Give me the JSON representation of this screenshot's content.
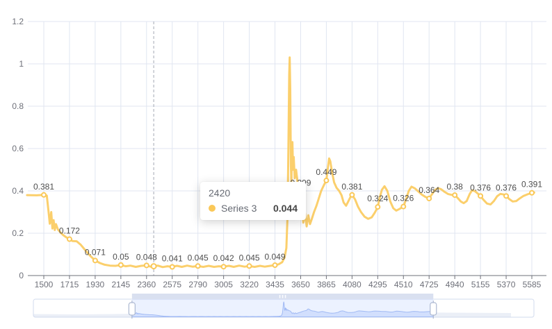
{
  "appearance": {
    "background": "#ffffff",
    "grid_line_color": "#E0E6F1",
    "axis_color": "#6E7079",
    "axis_label_color": "#6E7079",
    "data_label_color": "#4D4D4D",
    "axis_pointer_color": "#A2A7B3",
    "slider_border_color": "#D2DBEE",
    "slider_handle_border": "#ACB8D1",
    "slider_fill_color": "rgba(135,175,255,0.16)",
    "slider_selected_shadow_line": "#A6BDF2",
    "slider_selected_shadow_area": "rgba(143,176,247,0.28)",
    "slider_unselected_shadow_area": "rgba(210,219,238,0.45)"
  },
  "chart_data": {
    "type": "line",
    "title": "",
    "legend": "none",
    "grid": true,
    "x_axis": {
      "ticks": [
        1500,
        1715,
        1930,
        2145,
        2360,
        2575,
        2790,
        3005,
        3220,
        3435,
        3650,
        3865,
        4080,
        4295,
        4510,
        4725,
        4940,
        5155,
        5370,
        5585
      ]
    },
    "y_axis": {
      "ticks": [
        0,
        0.2,
        0.4,
        0.6,
        0.8,
        1,
        1.2
      ],
      "range": [
        0,
        1.2
      ]
    },
    "series": [
      {
        "name": "Series 3",
        "color": "#FAC858",
        "points": {
          "x": [
            1500,
            1715,
            1930,
            2145,
            2360,
            2575,
            2790,
            3005,
            3220,
            3435,
            3650,
            3865,
            4080,
            4295,
            4510,
            4725,
            4940,
            5155,
            5370,
            5585
          ],
          "y": [
            0.381,
            0.172,
            0.071,
            0.05,
            0.048,
            0.041,
            0.045,
            0.042,
            0.045,
            0.049,
            0.399,
            0.449,
            0.381,
            0.324,
            0.326,
            0.364,
            0.38,
            0.376,
            0.376,
            0.391
          ],
          "labels": [
            "0.381",
            "0.172",
            "0.071",
            "0.05",
            "0.048",
            "0.041",
            "0.045",
            "0.042",
            "0.045",
            "0.049",
            "0.399",
            "0.449",
            "0.381",
            "0.324",
            "0.326",
            "0.364",
            "0.38",
            "0.376",
            "0.376",
            "0.391"
          ]
        }
      }
    ],
    "hover_point": {
      "x": 2420,
      "value": 0.044
    },
    "detail_line": [
      [
        1360,
        0.38
      ],
      [
        1440,
        0.379
      ],
      [
        1500,
        0.381
      ],
      [
        1525,
        0.378
      ],
      [
        1540,
        0.3
      ],
      [
        1550,
        0.245
      ],
      [
        1562,
        0.3
      ],
      [
        1572,
        0.222
      ],
      [
        1582,
        0.262
      ],
      [
        1592,
        0.215
      ],
      [
        1602,
        0.243
      ],
      [
        1618,
        0.218
      ],
      [
        1640,
        0.203
      ],
      [
        1665,
        0.19
      ],
      [
        1690,
        0.18
      ],
      [
        1715,
        0.172
      ],
      [
        1740,
        0.163
      ],
      [
        1775,
        0.162
      ],
      [
        1810,
        0.145
      ],
      [
        1850,
        0.118
      ],
      [
        1890,
        0.092
      ],
      [
        1930,
        0.071
      ],
      [
        1970,
        0.059
      ],
      [
        2010,
        0.051
      ],
      [
        2055,
        0.047
      ],
      [
        2100,
        0.046
      ],
      [
        2145,
        0.05
      ],
      [
        2185,
        0.044
      ],
      [
        2225,
        0.047
      ],
      [
        2270,
        0.041
      ],
      [
        2315,
        0.046
      ],
      [
        2360,
        0.048
      ],
      [
        2395,
        0.042
      ],
      [
        2420,
        0.044
      ],
      [
        2455,
        0.047
      ],
      [
        2495,
        0.04
      ],
      [
        2535,
        0.044
      ],
      [
        2575,
        0.041
      ],
      [
        2615,
        0.046
      ],
      [
        2655,
        0.041
      ],
      [
        2700,
        0.047
      ],
      [
        2745,
        0.042
      ],
      [
        2790,
        0.045
      ],
      [
        2835,
        0.041
      ],
      [
        2880,
        0.046
      ],
      [
        2925,
        0.041
      ],
      [
        2965,
        0.044
      ],
      [
        3005,
        0.042
      ],
      [
        3050,
        0.046
      ],
      [
        3090,
        0.041
      ],
      [
        3135,
        0.047
      ],
      [
        3180,
        0.042
      ],
      [
        3220,
        0.045
      ],
      [
        3265,
        0.041
      ],
      [
        3310,
        0.046
      ],
      [
        3350,
        0.042
      ],
      [
        3395,
        0.046
      ],
      [
        3435,
        0.049
      ],
      [
        3465,
        0.053
      ],
      [
        3495,
        0.063
      ],
      [
        3515,
        0.085
      ],
      [
        3530,
        0.13
      ],
      [
        3540,
        0.28
      ],
      [
        3548,
        0.62
      ],
      [
        3554,
        0.95
      ],
      [
        3558,
        1.03
      ],
      [
        3563,
        0.88
      ],
      [
        3568,
        0.52
      ],
      [
        3572,
        0.44
      ],
      [
        3577,
        0.56
      ],
      [
        3581,
        0.63
      ],
      [
        3586,
        0.5
      ],
      [
        3592,
        0.56
      ],
      [
        3600,
        0.46
      ],
      [
        3612,
        0.5
      ],
      [
        3624,
        0.44
      ],
      [
        3637,
        0.43
      ],
      [
        3650,
        0.399
      ],
      [
        3660,
        0.33
      ],
      [
        3672,
        0.25
      ],
      [
        3686,
        0.295
      ],
      [
        3700,
        0.232
      ],
      [
        3714,
        0.285
      ],
      [
        3728,
        0.243
      ],
      [
        3745,
        0.27
      ],
      [
        3762,
        0.3
      ],
      [
        3782,
        0.33
      ],
      [
        3802,
        0.365
      ],
      [
        3822,
        0.4
      ],
      [
        3845,
        0.428
      ],
      [
        3865,
        0.449
      ],
      [
        3878,
        0.51
      ],
      [
        3888,
        0.553
      ],
      [
        3898,
        0.54
      ],
      [
        3912,
        0.49
      ],
      [
        3930,
        0.44
      ],
      [
        3950,
        0.415
      ],
      [
        3972,
        0.4
      ],
      [
        3992,
        0.38
      ],
      [
        4010,
        0.345
      ],
      [
        4030,
        0.33
      ],
      [
        4048,
        0.35
      ],
      [
        4064,
        0.368
      ],
      [
        4080,
        0.381
      ],
      [
        4105,
        0.36
      ],
      [
        4130,
        0.325
      ],
      [
        4155,
        0.3
      ],
      [
        4185,
        0.278
      ],
      [
        4215,
        0.268
      ],
      [
        4245,
        0.275
      ],
      [
        4268,
        0.295
      ],
      [
        4283,
        0.31
      ],
      [
        4295,
        0.324
      ],
      [
        4312,
        0.368
      ],
      [
        4330,
        0.405
      ],
      [
        4352,
        0.422
      ],
      [
        4375,
        0.4
      ],
      [
        4400,
        0.35
      ],
      [
        4425,
        0.318
      ],
      [
        4450,
        0.307
      ],
      [
        4478,
        0.315
      ],
      [
        4510,
        0.326
      ],
      [
        4532,
        0.36
      ],
      [
        4555,
        0.4
      ],
      [
        4578,
        0.42
      ],
      [
        4605,
        0.412
      ],
      [
        4635,
        0.397
      ],
      [
        4665,
        0.382
      ],
      [
        4695,
        0.371
      ],
      [
        4725,
        0.364
      ],
      [
        4750,
        0.385
      ],
      [
        4775,
        0.405
      ],
      [
        4800,
        0.413
      ],
      [
        4825,
        0.408
      ],
      [
        4855,
        0.395
      ],
      [
        4885,
        0.385
      ],
      [
        4915,
        0.381
      ],
      [
        4940,
        0.38
      ],
      [
        4965,
        0.366
      ],
      [
        4990,
        0.35
      ],
      [
        5015,
        0.342
      ],
      [
        5040,
        0.352
      ],
      [
        5065,
        0.385
      ],
      [
        5085,
        0.403
      ],
      [
        5110,
        0.398
      ],
      [
        5135,
        0.386
      ],
      [
        5155,
        0.376
      ],
      [
        5180,
        0.358
      ],
      [
        5210,
        0.34
      ],
      [
        5240,
        0.336
      ],
      [
        5268,
        0.352
      ],
      [
        5295,
        0.375
      ],
      [
        5322,
        0.386
      ],
      [
        5348,
        0.383
      ],
      [
        5370,
        0.376
      ],
      [
        5395,
        0.362
      ],
      [
        5425,
        0.35
      ],
      [
        5455,
        0.352
      ],
      [
        5485,
        0.365
      ],
      [
        5515,
        0.376
      ],
      [
        5550,
        0.384
      ],
      [
        5585,
        0.391
      ],
      [
        5605,
        0.392
      ]
    ]
  },
  "axis_pointer": {
    "x": 2420,
    "style": "dashed"
  },
  "tooltip": {
    "title": "2420",
    "series_name": "Series 3",
    "value": "0.044"
  },
  "data_zoom_slider": {
    "start_pct": 19.7,
    "end_pct": 79.9,
    "has_move_handle": true,
    "has_grip": true
  }
}
